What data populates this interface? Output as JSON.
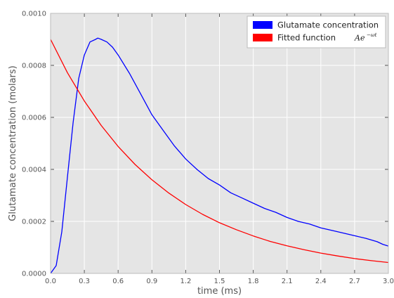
{
  "chart_data": {
    "type": "line",
    "xlabel": "time (ms)",
    "ylabel": "Glutamate concentration (molars)",
    "xlim": [
      0,
      3.0
    ],
    "ylim": [
      0,
      0.001
    ],
    "xticks": [
      "0.0",
      "0.3",
      "0.6",
      "0.9",
      "1.2",
      "1.5",
      "1.8",
      "2.1",
      "2.4",
      "2.7",
      "3.0"
    ],
    "yticks": [
      "0.0000",
      "0.0002",
      "0.0004",
      "0.0006",
      "0.0008",
      "0.0010"
    ],
    "grid": true,
    "legend_position": "top-right",
    "series": [
      {
        "name": "Glutamate concentration",
        "color": "#0000ff",
        "x": [
          0,
          0.05,
          0.1,
          0.15,
          0.2,
          0.25,
          0.3,
          0.35,
          0.4,
          0.42,
          0.45,
          0.5,
          0.55,
          0.6,
          0.7,
          0.8,
          0.9,
          1.0,
          1.1,
          1.2,
          1.3,
          1.4,
          1.5,
          1.6,
          1.7,
          1.8,
          1.9,
          2.0,
          2.1,
          2.2,
          2.3,
          2.4,
          2.5,
          2.6,
          2.7,
          2.8,
          2.9,
          2.95,
          3.0
        ],
        "y": [
          0,
          3e-05,
          0.00016,
          0.00037,
          0.00058,
          0.00075,
          0.00084,
          0.00089,
          0.0009,
          0.000905,
          0.0009,
          0.00089,
          0.00087,
          0.00084,
          0.00077,
          0.00069,
          0.00061,
          0.00055,
          0.00049,
          0.00044,
          0.0004,
          0.000365,
          0.00034,
          0.00031,
          0.00029,
          0.00027,
          0.00025,
          0.000235,
          0.000215,
          0.0002,
          0.00019,
          0.000175,
          0.000165,
          0.000155,
          0.000145,
          0.000135,
          0.000122,
          0.000112,
          0.000105
        ]
      },
      {
        "name": "Fitted function",
        "formula_label": "Ae",
        "formula_exponent": "−ωt",
        "color": "#ff0000",
        "x": [
          0,
          0.15,
          0.3,
          0.45,
          0.6,
          0.75,
          0.9,
          1.05,
          1.2,
          1.35,
          1.5,
          1.65,
          1.8,
          1.95,
          2.1,
          2.25,
          2.4,
          2.55,
          2.7,
          2.85,
          3.0
        ],
        "y": [
          0.0009,
          0.000772,
          0.000663,
          0.000569,
          0.000488,
          0.000419,
          0.00036,
          0.000309,
          0.000265,
          0.000227,
          0.000195,
          0.000168,
          0.000144,
          0.000123,
          0.000106,
          9.1e-05,
          7.8e-05,
          6.7e-05,
          5.7e-05,
          4.9e-05,
          4.2e-05
        ]
      }
    ]
  }
}
